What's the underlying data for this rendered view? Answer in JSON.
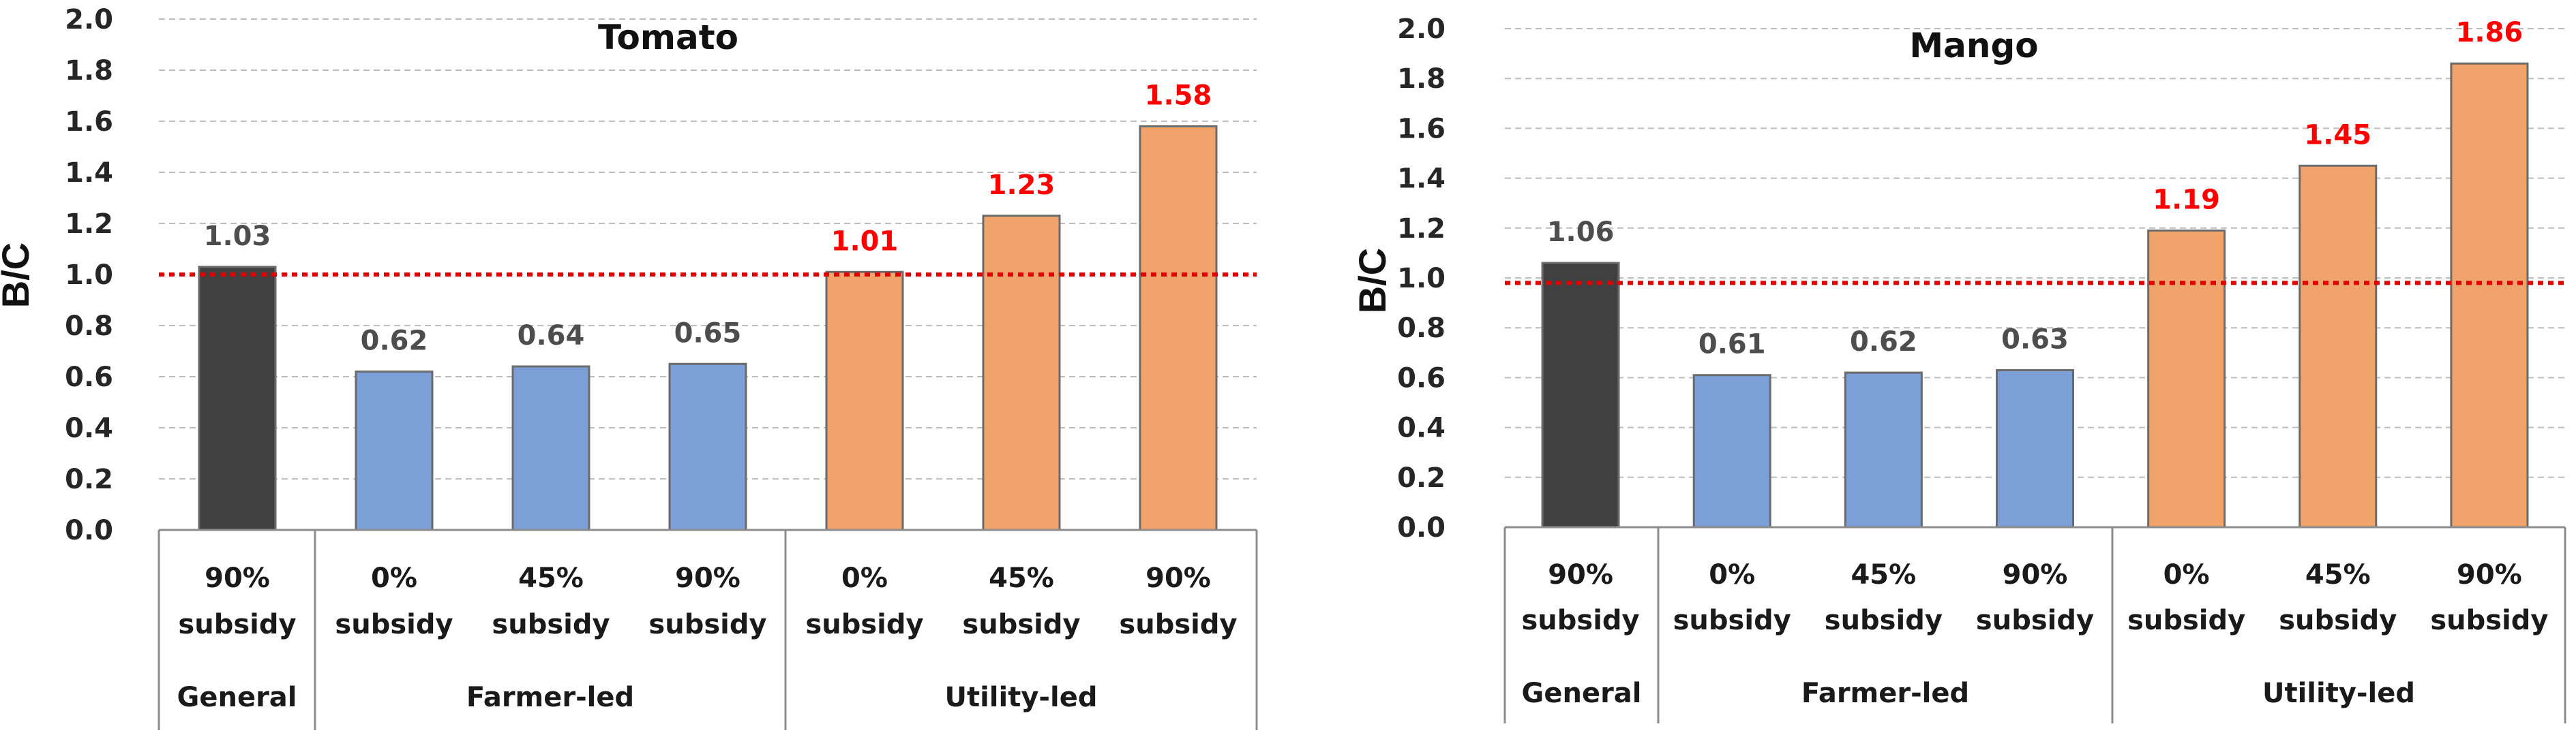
{
  "colors": {
    "general": "#404040",
    "farmer": "#7b9fd6",
    "utility": "#f0a46c",
    "bar_stroke": "#6b6b6b",
    "grid": "#bdbdbd",
    "axis": "#8c8c8c",
    "threshold": "#e00000",
    "label_dark": "#4d4d4d",
    "label_red": "#ff0000"
  },
  "chart_data": [
    {
      "type": "bar",
      "title": "Tomato",
      "ylabel": "B/C",
      "ylim": [
        0,
        2.0
      ],
      "yticks": [
        "0.0",
        "0.2",
        "0.4",
        "0.6",
        "0.8",
        "1.0",
        "1.2",
        "1.4",
        "1.6",
        "1.8",
        "2.0"
      ],
      "grid": true,
      "threshold": 1.0,
      "bars": [
        {
          "label_line1": "90%",
          "label_line2": "subsidy",
          "group": "General",
          "value": 1.03,
          "label": "1.03"
        },
        {
          "label_line1": "0%",
          "label_line2": "subsidy",
          "group": "Farmer-led",
          "value": 0.62,
          "label": "0.62"
        },
        {
          "label_line1": "45%",
          "label_line2": "subsidy",
          "group": "Farmer-led",
          "value": 0.64,
          "label": "0.64"
        },
        {
          "label_line1": "90%",
          "label_line2": "subsidy",
          "group": "Farmer-led",
          "value": 0.65,
          "label": "0.65"
        },
        {
          "label_line1": "0%",
          "label_line2": "subsidy",
          "group": "Utility-led",
          "value": 1.01,
          "label": "1.01"
        },
        {
          "label_line1": "45%",
          "label_line2": "subsidy",
          "group": "Utility-led",
          "value": 1.23,
          "label": "1.23"
        },
        {
          "label_line1": "90%",
          "label_line2": "subsidy",
          "group": "Utility-led",
          "value": 1.58,
          "label": "1.58"
        }
      ],
      "groups": [
        "General",
        "Farmer-led",
        "Utility-led"
      ]
    },
    {
      "type": "bar",
      "title": "Mango",
      "ylabel": "B/C",
      "ylim": [
        0,
        2.0
      ],
      "yticks": [
        "0.0",
        "0.2",
        "0.4",
        "0.6",
        "0.8",
        "1.0",
        "1.2",
        "1.4",
        "1.6",
        "1.8",
        "2.0"
      ],
      "grid": true,
      "threshold": 0.98,
      "bars": [
        {
          "label_line1": "90%",
          "label_line2": "subsidy",
          "group": "General",
          "value": 1.06,
          "label": "1.06"
        },
        {
          "label_line1": "0%",
          "label_line2": "subsidy",
          "group": "Farmer-led",
          "value": 0.61,
          "label": "0.61"
        },
        {
          "label_line1": "45%",
          "label_line2": "subsidy",
          "group": "Farmer-led",
          "value": 0.62,
          "label": "0.62"
        },
        {
          "label_line1": "90%",
          "label_line2": "subsidy",
          "group": "Farmer-led",
          "value": 0.63,
          "label": "0.63"
        },
        {
          "label_line1": "0%",
          "label_line2": "subsidy",
          "group": "Utility-led",
          "value": 1.19,
          "label": "1.19"
        },
        {
          "label_line1": "45%",
          "label_line2": "subsidy",
          "group": "Utility-led",
          "value": 1.45,
          "label": "1.45"
        },
        {
          "label_line1": "90%",
          "label_line2": "subsidy",
          "group": "Utility-led",
          "value": 1.86,
          "label": "1.86"
        }
      ],
      "groups": [
        "General",
        "Farmer-led",
        "Utility-led"
      ]
    }
  ]
}
